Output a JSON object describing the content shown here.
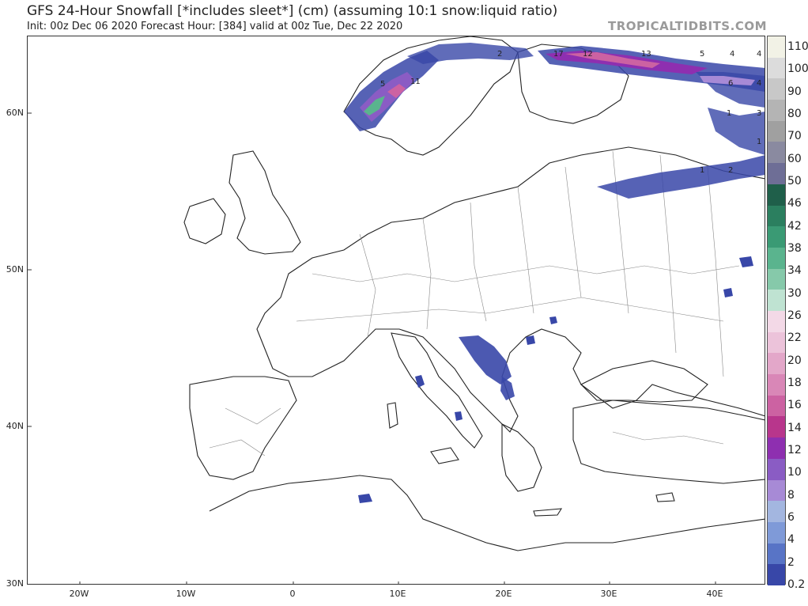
{
  "header": {
    "title": "GFS 24-Hour Snowfall [*includes sleet*] (cm) (assuming 10:1 snow:liquid ratio)",
    "subtitle": "Init: 00z Dec 06 2020   Forecast Hour: [384]   valid at 00z Tue, Dec 22 2020",
    "watermark": "TROPICALTIDBITS.COM"
  },
  "map": {
    "lat_ticks": [
      "60N",
      "50N",
      "40N",
      "30N"
    ],
    "lon_ticks": [
      "20W",
      "10W",
      "0",
      "10E",
      "20E",
      "30E",
      "40E"
    ],
    "snow_labels": [
      "2",
      "5",
      "11",
      "17",
      "12",
      "13",
      "5",
      "4",
      "4",
      "6",
      "4",
      "1",
      "3",
      "1",
      "1",
      "2"
    ]
  },
  "colorbar": {
    "labels": [
      "110",
      "100",
      "90",
      "80",
      "70",
      "60",
      "50",
      "46",
      "42",
      "38",
      "34",
      "30",
      "26",
      "22",
      "20",
      "18",
      "16",
      "14",
      "12",
      "10",
      "8",
      "6",
      "4",
      "2",
      "0.2"
    ],
    "colors": [
      "#f2f2e6",
      "#dcdcdc",
      "#c8c8c8",
      "#b4b4b4",
      "#a0a0a0",
      "#8a8aa0",
      "#6e6e96",
      "#1f5f4a",
      "#2b7f5f",
      "#3a9a74",
      "#5ab48e",
      "#86c9aa",
      "#bfe3d2",
      "#f3d9e7",
      "#ecc3da",
      "#e3a7c9",
      "#d987b7",
      "#cc62a2",
      "#b8368c",
      "#8e2fb0",
      "#8a5cc4",
      "#a78ad6",
      "#a3b6e0",
      "#7f9ad8",
      "#5874c6",
      "#3847a8"
    ]
  }
}
